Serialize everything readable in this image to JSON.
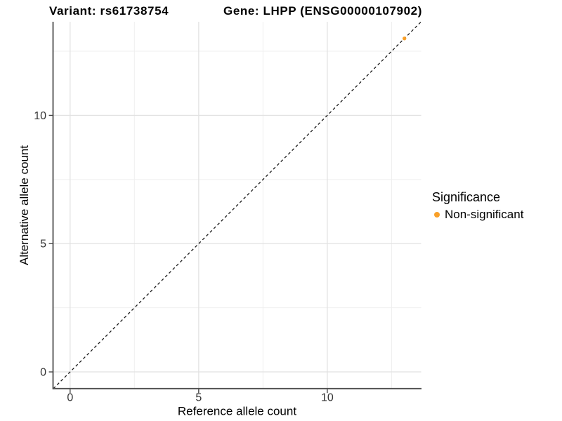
{
  "page": {
    "background": "#FFFFFF"
  },
  "header": {
    "variant_title": "Variant: rs61738754",
    "gene_title": "Gene: LHPP (ENSG00000107902)"
  },
  "axes": {
    "x": {
      "label": "Reference allele count",
      "ticks": [
        0,
        5,
        10
      ]
    },
    "y": {
      "label": "Alternative allele count",
      "ticks": [
        0,
        5,
        10
      ]
    }
  },
  "legend": {
    "title": "Significance",
    "items": [
      {
        "label": "Non-significant",
        "color": "#F9A029"
      }
    ]
  },
  "chart_data": {
    "type": "scatter",
    "title": "Variant: rs61738754 | Gene: LHPP (ENSG00000107902)",
    "xlabel": "Reference allele count",
    "ylabel": "Alternative allele count",
    "xlim": [
      -0.65,
      13.65
    ],
    "ylim": [
      -0.65,
      13.65
    ],
    "x_major_ticks": [
      0,
      5,
      10
    ],
    "y_major_ticks": [
      0,
      5,
      10
    ],
    "x_minor_gridlines": [
      2.5,
      7.5,
      12.5
    ],
    "y_minor_gridlines": [
      2.5,
      7.5,
      12.5
    ],
    "grid": "major+minor",
    "legend_position": "right",
    "series": [
      {
        "name": "Non-significant",
        "color": "#F9A029",
        "points": [
          [
            13,
            13
          ]
        ]
      }
    ],
    "reference_line": {
      "type": "identity",
      "slope": 1,
      "intercept": 0,
      "style": "dashed",
      "color": "#1A1A1A"
    }
  },
  "style": {
    "grid_major_color": "#E2E2E2",
    "grid_minor_color": "#EFEFEF",
    "axis_color": "#4D4D4D",
    "tick_label_color": "#333333",
    "point_color": "#F9A029"
  }
}
